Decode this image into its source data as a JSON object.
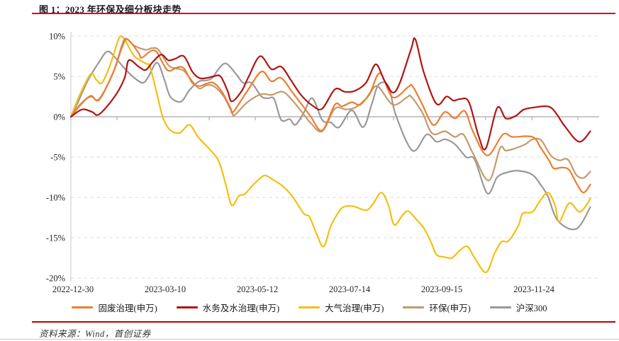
{
  "header": {
    "title": "图 1：2023 年环保及细分板块走势"
  },
  "footer": {
    "source": "资料来源：Wind，首创证券"
  },
  "colors": {
    "accent_red": "#d9001b",
    "zero_line": "#a6a6a6",
    "grid_line": "#dedede",
    "axis_spine": "#c9c9c9",
    "text": "#262626"
  },
  "chart_data": {
    "type": "line",
    "title": "2023 年环保及细分板块走势",
    "grid": "dashed-horizontal",
    "legend_position": "bottom",
    "x_axis": {
      "labels": [
        "2022-12-30",
        "2023-03-10",
        "2023-05-12",
        "2023-07-14",
        "2023-09-15",
        "2023-11-24"
      ],
      "label_days": [
        0,
        70,
        133,
        196,
        259,
        329
      ],
      "max_day": 372
    },
    "y_axis": {
      "unit": "%",
      "tick_labels": [
        "10%",
        "5%",
        "0%",
        "-5%",
        "-10%",
        "-15%",
        "-20%"
      ],
      "tick_values": [
        10,
        5,
        0,
        -5,
        -10,
        -15,
        -20
      ],
      "min": -20,
      "max": 10
    },
    "series": [
      {
        "name": "固废治理(申万)",
        "color": "#ed7d31",
        "points": [
          [
            0,
            0
          ],
          [
            7,
            1.5
          ],
          [
            14,
            2.6
          ],
          [
            20,
            2.1
          ],
          [
            30,
            5.5
          ],
          [
            36,
            8.5
          ],
          [
            40,
            9.6
          ],
          [
            48,
            7.9
          ],
          [
            50,
            7.3
          ],
          [
            57,
            8.2
          ],
          [
            61,
            8.0
          ],
          [
            64,
            7.0
          ],
          [
            69,
            5.7
          ],
          [
            75,
            6.1
          ],
          [
            80,
            6.0
          ],
          [
            86,
            4.2
          ],
          [
            91,
            3.8
          ],
          [
            96,
            4.1
          ],
          [
            101,
            4.2
          ],
          [
            107,
            3.1
          ],
          [
            113,
            1.1
          ],
          [
            115,
            0.6
          ],
          [
            125,
            3.2
          ],
          [
            135,
            5.6
          ],
          [
            142,
            4.4
          ],
          [
            149,
            4.8
          ],
          [
            157,
            3.0
          ],
          [
            164,
            1.4
          ],
          [
            170,
            0.0
          ],
          [
            178,
            -1.7
          ],
          [
            187,
            1.5
          ],
          [
            192,
            1.3
          ],
          [
            199,
            1.8
          ],
          [
            205,
            1.5
          ],
          [
            212,
            3.0
          ],
          [
            219,
            5.4
          ],
          [
            228,
            2.4
          ],
          [
            239,
            3.7
          ],
          [
            242,
            3.8
          ],
          [
            249,
            1.5
          ],
          [
            254,
            -0.4
          ],
          [
            258,
            -1.0
          ],
          [
            265,
            0.6
          ],
          [
            272,
            -0.2
          ],
          [
            279,
            0.7
          ],
          [
            285,
            -1.9
          ],
          [
            295,
            -4.8
          ],
          [
            306,
            -2.2
          ],
          [
            313,
            -2.5
          ],
          [
            327,
            -2.5
          ],
          [
            333,
            -3.9
          ],
          [
            339,
            -5.5
          ],
          [
            342,
            -6.4
          ],
          [
            348,
            -6.3
          ],
          [
            353,
            -6.6
          ],
          [
            358,
            -8.2
          ],
          [
            363,
            -9.4
          ],
          [
            368,
            -8.4
          ]
        ]
      },
      {
        "name": "水务及水治理(申万)",
        "color": "#b01513",
        "points": [
          [
            0,
            0
          ],
          [
            8,
            0.9
          ],
          [
            15,
            0.6
          ],
          [
            20,
            0.3
          ],
          [
            31,
            2.5
          ],
          [
            38,
            4.8
          ],
          [
            41,
            7.0
          ],
          [
            48,
            6.2
          ],
          [
            53,
            5.8
          ],
          [
            58,
            6.8
          ],
          [
            64,
            7.7
          ],
          [
            69,
            7.0
          ],
          [
            74,
            7.2
          ],
          [
            80,
            7.5
          ],
          [
            86,
            5.6
          ],
          [
            91,
            4.8
          ],
          [
            96,
            4.8
          ],
          [
            101,
            5.0
          ],
          [
            106,
            5.0
          ],
          [
            111,
            3.2
          ],
          [
            114,
            1.9
          ],
          [
            121,
            3.2
          ],
          [
            126,
            5.0
          ],
          [
            134,
            7.5
          ],
          [
            142,
            5.9
          ],
          [
            149,
            6.2
          ],
          [
            156,
            4.5
          ],
          [
            163,
            2.7
          ],
          [
            171,
            1.4
          ],
          [
            178,
            1.0
          ],
          [
            187,
            3.4
          ],
          [
            194,
            3.1
          ],
          [
            201,
            3.2
          ],
          [
            209,
            4.2
          ],
          [
            216,
            6.5
          ],
          [
            222,
            4.5
          ],
          [
            228,
            3.0
          ],
          [
            233,
            4.2
          ],
          [
            241,
            8.4
          ],
          [
            244,
            9.6
          ],
          [
            250,
            5.5
          ],
          [
            259,
            1.6
          ],
          [
            266,
            2.5
          ],
          [
            271,
            2.0
          ],
          [
            276,
            2.2
          ],
          [
            282,
            1.8
          ],
          [
            289,
            -2.5
          ],
          [
            294,
            -3.9
          ],
          [
            302,
            1.1
          ],
          [
            308,
            -0.2
          ],
          [
            315,
            0.1
          ],
          [
            321,
            0.9
          ],
          [
            330,
            1.2
          ],
          [
            337,
            1.3
          ],
          [
            341,
            1.0
          ],
          [
            345,
            0.1
          ],
          [
            350,
            -1.2
          ],
          [
            360,
            -3.1
          ],
          [
            368,
            -1.8
          ]
        ]
      },
      {
        "name": "大气治理(申万)",
        "color": "#f2c011",
        "points": [
          [
            0,
            0
          ],
          [
            6,
            2.6
          ],
          [
            14,
            5.3
          ],
          [
            18,
            4.6
          ],
          [
            22,
            4.2
          ],
          [
            28,
            6.5
          ],
          [
            34,
            9.7
          ],
          [
            37,
            9.8
          ],
          [
            40,
            9.0
          ],
          [
            45,
            7.5
          ],
          [
            53,
            6.6
          ],
          [
            56,
            6.2
          ],
          [
            61,
            2.8
          ],
          [
            65,
            0.0
          ],
          [
            70,
            -1.6
          ],
          [
            77,
            -2.0
          ],
          [
            84,
            -1.0
          ],
          [
            90,
            -2.5
          ],
          [
            97,
            -3.8
          ],
          [
            103,
            -5.0
          ],
          [
            106,
            -6.1
          ],
          [
            110,
            -8.6
          ],
          [
            114,
            -11.0
          ],
          [
            119,
            -9.8
          ],
          [
            123,
            -9.6
          ],
          [
            130,
            -8.3
          ],
          [
            137,
            -7.3
          ],
          [
            143,
            -7.8
          ],
          [
            150,
            -8.6
          ],
          [
            157,
            -9.9
          ],
          [
            165,
            -12.0
          ],
          [
            169,
            -12.4
          ],
          [
            174,
            -14.5
          ],
          [
            179,
            -16.1
          ],
          [
            184,
            -13.6
          ],
          [
            189,
            -12.0
          ],
          [
            193,
            -11.2
          ],
          [
            200,
            -11.1
          ],
          [
            209,
            -11.6
          ],
          [
            214,
            -10.8
          ],
          [
            220,
            -9.4
          ],
          [
            225,
            -11.0
          ],
          [
            229,
            -13.4
          ],
          [
            235,
            -12.2
          ],
          [
            239,
            -11.7
          ],
          [
            245,
            -12.8
          ],
          [
            250,
            -13.8
          ],
          [
            255,
            -15.5
          ],
          [
            259,
            -17.1
          ],
          [
            265,
            -17.4
          ],
          [
            270,
            -17.5
          ],
          [
            276,
            -16.5
          ],
          [
            281,
            -16.1
          ],
          [
            286,
            -17.5
          ],
          [
            294,
            -19.3
          ],
          [
            300,
            -17.0
          ],
          [
            305,
            -15.5
          ],
          [
            310,
            -15.4
          ],
          [
            317,
            -13.5
          ],
          [
            320,
            -12.0
          ],
          [
            327,
            -11.8
          ],
          [
            332,
            -10.5
          ],
          [
            338,
            -9.4
          ],
          [
            343,
            -11.0
          ],
          [
            346,
            -13.0
          ],
          [
            353,
            -10.7
          ],
          [
            360,
            -11.8
          ],
          [
            365,
            -11.0
          ],
          [
            368,
            -10.1
          ]
        ]
      },
      {
        "name": "环保(申万)",
        "color": "#c49a6c",
        "points": [
          [
            0,
            0
          ],
          [
            7,
            1.6
          ],
          [
            14,
            2.5
          ],
          [
            20,
            2.2
          ],
          [
            30,
            5.5
          ],
          [
            36,
            8.8
          ],
          [
            39,
            9.7
          ],
          [
            45,
            8.8
          ],
          [
            53,
            8.3
          ],
          [
            57,
            8.5
          ],
          [
            62,
            8.3
          ],
          [
            69,
            6.4
          ],
          [
            74,
            6.0
          ],
          [
            80,
            5.7
          ],
          [
            86,
            4.4
          ],
          [
            91,
            3.5
          ],
          [
            96,
            3.9
          ],
          [
            101,
            3.8
          ],
          [
            108,
            2.6
          ],
          [
            114,
            0.6
          ],
          [
            116,
            0.2
          ],
          [
            125,
            1.8
          ],
          [
            135,
            2.8
          ],
          [
            142,
            2.7
          ],
          [
            150,
            3.1
          ],
          [
            157,
            2.0
          ],
          [
            164,
            0.5
          ],
          [
            170,
            -0.8
          ],
          [
            178,
            -1.8
          ],
          [
            187,
            1.0
          ],
          [
            195,
            0.9
          ],
          [
            202,
            1.2
          ],
          [
            210,
            2.4
          ],
          [
            217,
            3.8
          ],
          [
            228,
            1.5
          ],
          [
            238,
            2.4
          ],
          [
            241,
            2.5
          ],
          [
            249,
            0.5
          ],
          [
            254,
            -1.6
          ],
          [
            258,
            -2.2
          ],
          [
            265,
            -1.8
          ],
          [
            272,
            -2.5
          ],
          [
            278,
            -2.2
          ],
          [
            285,
            -4.6
          ],
          [
            296,
            -7.9
          ],
          [
            304,
            -3.9
          ],
          [
            308,
            -4.2
          ],
          [
            315,
            -3.9
          ],
          [
            322,
            -3.4
          ],
          [
            327,
            -2.8
          ],
          [
            333,
            -2.9
          ],
          [
            340,
            -4.8
          ],
          [
            346,
            -5.4
          ],
          [
            352,
            -5.3
          ],
          [
            358,
            -7.2
          ],
          [
            363,
            -7.6
          ],
          [
            368,
            -6.8
          ]
        ]
      },
      {
        "name": "沪深300",
        "color": "#999999",
        "points": [
          [
            0,
            0
          ],
          [
            5,
            1.8
          ],
          [
            12,
            4.5
          ],
          [
            20,
            6.8
          ],
          [
            26,
            8.1
          ],
          [
            32,
            7.2
          ],
          [
            39,
            5.8
          ],
          [
            45,
            4.8
          ],
          [
            51,
            4.2
          ],
          [
            55,
            5.0
          ],
          [
            61,
            6.7
          ],
          [
            66,
            4.7
          ],
          [
            70,
            2.6
          ],
          [
            75,
            1.9
          ],
          [
            79,
            2.0
          ],
          [
            84,
            3.3
          ],
          [
            91,
            4.4
          ],
          [
            96,
            4.5
          ],
          [
            100,
            4.8
          ],
          [
            105,
            6.0
          ],
          [
            110,
            6.6
          ],
          [
            117,
            5.3
          ],
          [
            122,
            4.2
          ],
          [
            128,
            4.2
          ],
          [
            135,
            2.5
          ],
          [
            140,
            2.3
          ],
          [
            144,
            2.2
          ],
          [
            149,
            -0.4
          ],
          [
            155,
            -0.3
          ],
          [
            159,
            -1.0
          ],
          [
            165,
            0.5
          ],
          [
            171,
            2.3
          ],
          [
            178,
            -0.4
          ],
          [
            184,
            -0.7
          ],
          [
            190,
            -1.3
          ],
          [
            199,
            0.8
          ],
          [
            207,
            -1.3
          ],
          [
            213,
            1.5
          ],
          [
            218,
            4.0
          ],
          [
            225,
            3.8
          ],
          [
            230,
            0.3
          ],
          [
            242,
            -4.2
          ],
          [
            252,
            -2.2
          ],
          [
            259,
            -3.1
          ],
          [
            265,
            -2.8
          ],
          [
            272,
            -3.4
          ],
          [
            280,
            -5.0
          ],
          [
            286,
            -5.3
          ],
          [
            295,
            -9.5
          ],
          [
            302,
            -7.5
          ],
          [
            309,
            -6.9
          ],
          [
            317,
            -6.7
          ],
          [
            327,
            -7.2
          ],
          [
            333,
            -8.5
          ],
          [
            338,
            -9.9
          ],
          [
            345,
            -12.9
          ],
          [
            358,
            -13.9
          ],
          [
            368,
            -11.2
          ]
        ]
      }
    ]
  }
}
